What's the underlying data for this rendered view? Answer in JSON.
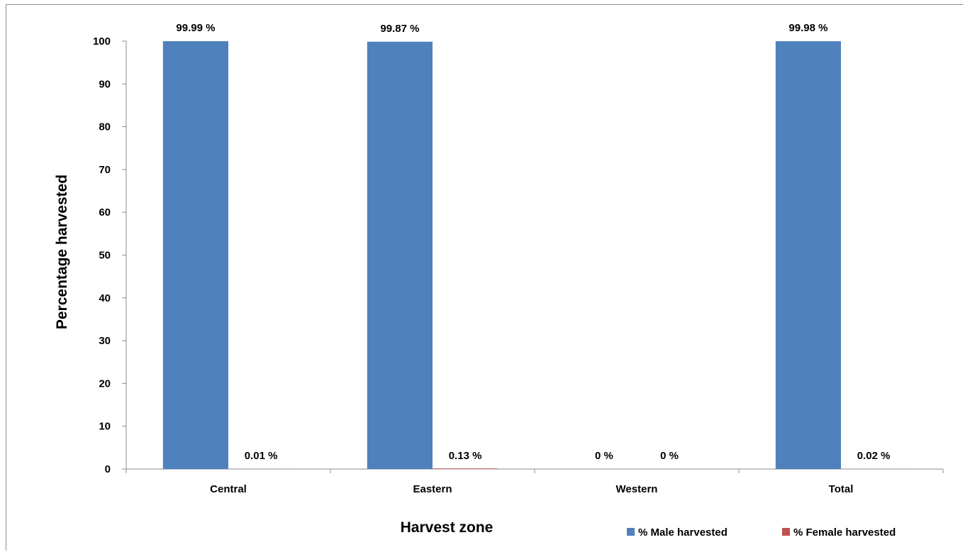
{
  "chart_data": {
    "type": "bar",
    "categories": [
      "Central",
      "Eastern",
      "Western",
      "Total"
    ],
    "series": [
      {
        "name": "% Male harvested",
        "color": "#4f81bd",
        "values": [
          99.99,
          99.87,
          0,
          99.98
        ],
        "labels": [
          "99.99 %",
          "99.87 %",
          "0 %",
          "99.98 %"
        ]
      },
      {
        "name": "% Female harvested",
        "color": "#c0504d",
        "values": [
          0.01,
          0.13,
          0,
          0.02
        ],
        "labels": [
          "0.01 %",
          "0.13 %",
          "0 %",
          "0.02 %"
        ]
      }
    ],
    "xlabel": "Harvest zone",
    "ylabel": "Percentage harvested",
    "ylim": [
      0,
      100
    ],
    "yticks": [
      0,
      10,
      20,
      30,
      40,
      50,
      60,
      70,
      80,
      90,
      100
    ],
    "grid": false,
    "legend_position": "bottom-right"
  }
}
